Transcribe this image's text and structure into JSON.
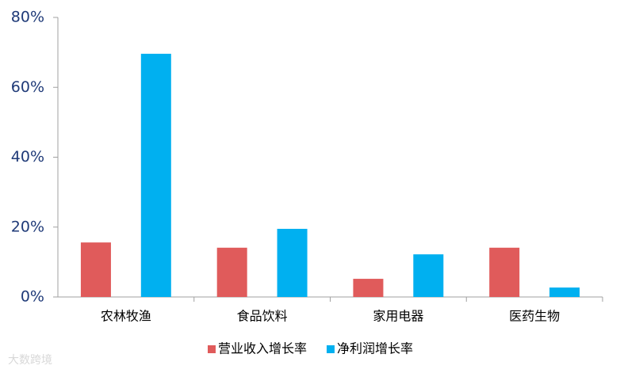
{
  "chart_data": {
    "type": "bar",
    "categories": [
      "农林牧渔",
      "食品饮料",
      "家用电器",
      "医药生物"
    ],
    "series": [
      {
        "name": "营业收入增长率",
        "color": "#e05b5b",
        "values": [
          15.6,
          14.1,
          5.2,
          14.1
        ]
      },
      {
        "name": "净利润增长率",
        "color": "#00b0f0",
        "values": [
          69.6,
          19.5,
          12.2,
          2.7
        ]
      }
    ],
    "ylim": [
      0,
      80
    ],
    "yticks": [
      {
        "value": 0,
        "label": "0%"
      },
      {
        "value": 20,
        "label": "20%"
      },
      {
        "value": 40,
        "label": "40%"
      },
      {
        "value": 60,
        "label": "60%"
      },
      {
        "value": 80,
        "label": "80%"
      }
    ],
    "grid": false,
    "legend": "bottom",
    "watermark": "大数跨境"
  }
}
